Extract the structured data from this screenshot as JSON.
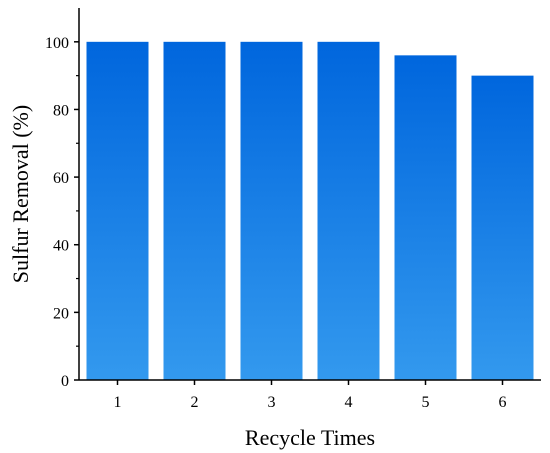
{
  "chart_data": {
    "type": "bar",
    "title": "",
    "xlabel": "Recycle Times",
    "ylabel": "Sulfur Removal (%)",
    "categories": [
      "1",
      "2",
      "3",
      "4",
      "5",
      "6"
    ],
    "values": [
      100,
      100,
      100,
      100,
      96,
      90
    ],
    "ylim": [
      0,
      110
    ],
    "yticks": [
      0,
      20,
      40,
      60,
      80,
      100
    ],
    "grid": false,
    "legend": "none",
    "colors": {
      "bar_top": "#0066DD",
      "bar_bottom": "#3399EE",
      "axis": "#000000"
    }
  }
}
